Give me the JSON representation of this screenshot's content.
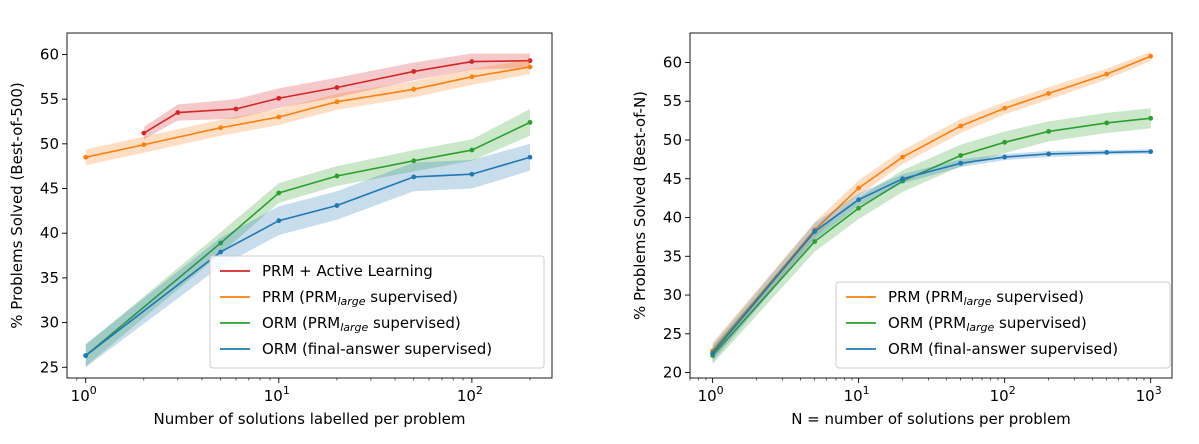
{
  "chart_data": [
    {
      "type": "line",
      "xscale": "log",
      "xlabel": "Number of solutions labelled per problem",
      "ylabel": "% Problems Solved (Best-of-500)",
      "xlim": [
        0.8,
        260
      ],
      "ylim": [
        23.8,
        62.4
      ],
      "xticks": [
        1,
        10,
        100
      ],
      "xtick_labels": [
        {
          "base": "10",
          "exp": "0"
        },
        {
          "base": "10",
          "exp": "1"
        },
        {
          "base": "10",
          "exp": "2"
        }
      ],
      "yticks": [
        25,
        30,
        35,
        40,
        45,
        50,
        55,
        60
      ],
      "ytick_labels": [
        "25",
        "30",
        "35",
        "40",
        "45",
        "50",
        "55",
        "60"
      ],
      "grid": false,
      "legend_position": "lower-right",
      "series": [
        {
          "name": "PRM + Active Learning",
          "color": "#d62728",
          "x": [
            2,
            3,
            6,
            10,
            20,
            50,
            100,
            200
          ],
          "y": [
            51.2,
            53.5,
            53.9,
            55.1,
            56.3,
            58.1,
            59.2,
            59.3
          ],
          "band": [
            0.7,
            0.9,
            1.1,
            1.1,
            1.1,
            1.0,
            0.9,
            0.8
          ]
        },
        {
          "name": "PRM (PRM",
          "name_sub": "large",
          "name_tail": " supervised)",
          "color": "#ff7f0e",
          "x": [
            1,
            2,
            5,
            10,
            20,
            50,
            100,
            200
          ],
          "y": [
            48.5,
            49.9,
            51.8,
            53.0,
            54.7,
            56.1,
            57.5,
            58.6
          ],
          "band": [
            0.9,
            0.9,
            0.9,
            0.9,
            0.9,
            0.9,
            0.9,
            0.8
          ]
        },
        {
          "name": "ORM (PRM",
          "name_sub": "large",
          "name_tail": " supervised)",
          "color": "#2ca02c",
          "x": [
            1,
            5,
            10,
            20,
            50,
            100,
            200
          ],
          "y": [
            26.3,
            38.9,
            44.5,
            46.4,
            48.1,
            49.3,
            52.4
          ],
          "band": [
            1.2,
            1.2,
            1.1,
            1.1,
            1.2,
            1.2,
            1.5
          ]
        },
        {
          "name": "ORM (final-answer supervised)",
          "color": "#1f77b4",
          "x": [
            1,
            5,
            10,
            20,
            50,
            100,
            200
          ],
          "y": [
            26.3,
            37.9,
            41.4,
            43.1,
            46.3,
            46.6,
            48.5
          ],
          "band": [
            1.3,
            1.6,
            1.6,
            1.6,
            1.6,
            1.6,
            1.5
          ]
        }
      ]
    },
    {
      "type": "line",
      "xscale": "log",
      "xlabel": "N = number of solutions per problem",
      "ylabel": "% Problems Solved (Best-of-N)",
      "xlim": [
        0.7,
        1400
      ],
      "ylim": [
        19.3,
        63.8
      ],
      "xticks": [
        1,
        10,
        100,
        1000
      ],
      "xtick_labels": [
        {
          "base": "10",
          "exp": "0"
        },
        {
          "base": "10",
          "exp": "1"
        },
        {
          "base": "10",
          "exp": "2"
        },
        {
          "base": "10",
          "exp": "3"
        }
      ],
      "yticks": [
        20,
        25,
        30,
        35,
        40,
        45,
        50,
        55,
        60
      ],
      "ytick_labels": [
        "20",
        "25",
        "30",
        "35",
        "40",
        "45",
        "50",
        "55",
        "60"
      ],
      "grid": false,
      "legend_position": "lower-right",
      "series": [
        {
          "name": "PRM (PRM",
          "name_sub": "large",
          "name_tail": " supervised)",
          "color": "#ff7f0e",
          "x": [
            1,
            5,
            10,
            20,
            50,
            100,
            200,
            500,
            1000
          ],
          "y": [
            22.8,
            38.4,
            43.8,
            47.8,
            51.8,
            54.1,
            56.0,
            58.5,
            60.8
          ],
          "band": [
            1.1,
            1.0,
            1.0,
            0.9,
            0.9,
            0.8,
            0.8,
            0.7,
            0.6
          ]
        },
        {
          "name": "ORM (PRM",
          "name_sub": "large",
          "name_tail": " supervised)",
          "color": "#2ca02c",
          "x": [
            1,
            5,
            10,
            20,
            50,
            100,
            200,
            500,
            1000
          ],
          "y": [
            22.2,
            36.9,
            41.2,
            44.7,
            48.0,
            49.7,
            51.1,
            52.2,
            52.8
          ],
          "band": [
            1.1,
            1.3,
            1.4,
            1.4,
            1.4,
            1.4,
            1.3,
            1.3,
            1.3
          ]
        },
        {
          "name": "ORM (final-answer supervised)",
          "color": "#1f77b4",
          "x": [
            1,
            5,
            10,
            20,
            50,
            100,
            200,
            500,
            1000
          ],
          "y": [
            22.5,
            38.2,
            42.3,
            45.0,
            47.0,
            47.8,
            48.2,
            48.4,
            48.5
          ],
          "band": [
            1.1,
            1.1,
            0.8,
            0.6,
            0.5,
            0.4,
            0.4,
            0.3,
            0.3
          ]
        }
      ]
    }
  ]
}
